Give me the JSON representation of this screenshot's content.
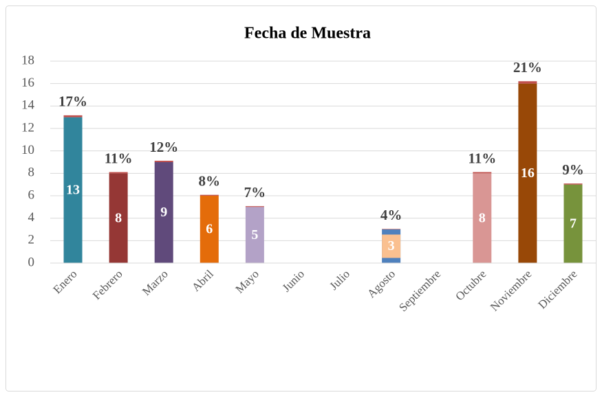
{
  "chart_data": {
    "type": "bar",
    "title": "Fecha de Muestra",
    "categories": [
      "Enero",
      "Febrero",
      "Marzo",
      "Abril",
      "Mayo",
      "Junio",
      "Julio",
      "Agosto",
      "Septiembre",
      "Octubre",
      "Noviembre",
      "Diciembre"
    ],
    "series": [
      {
        "values": [
          13,
          8,
          9,
          6,
          5,
          null,
          null,
          3,
          null,
          8,
          16,
          7
        ],
        "colors": [
          "#31859c",
          "#953735",
          "#604a7b",
          "#e46c0a",
          "#b3a2c7",
          null,
          null,
          "#4f81bd",
          null,
          "#d99694",
          "#984807",
          "#77933c"
        ]
      },
      {
        "values": [
          0.17,
          0.11,
          0.12,
          0.08,
          0.07,
          null,
          null,
          0.04,
          null,
          0.11,
          0.21,
          0.09
        ],
        "value_labels": [
          "17%",
          "11%",
          "12%",
          "8%",
          "7%",
          null,
          null,
          "4%",
          null,
          "11%",
          "21%",
          "9%"
        ],
        "color": "#c0504d"
      }
    ],
    "ylim": [
      0,
      18
    ],
    "yticks": [
      0,
      2,
      4,
      6,
      8,
      10,
      12,
      14,
      16,
      18
    ],
    "grid": true
  }
}
